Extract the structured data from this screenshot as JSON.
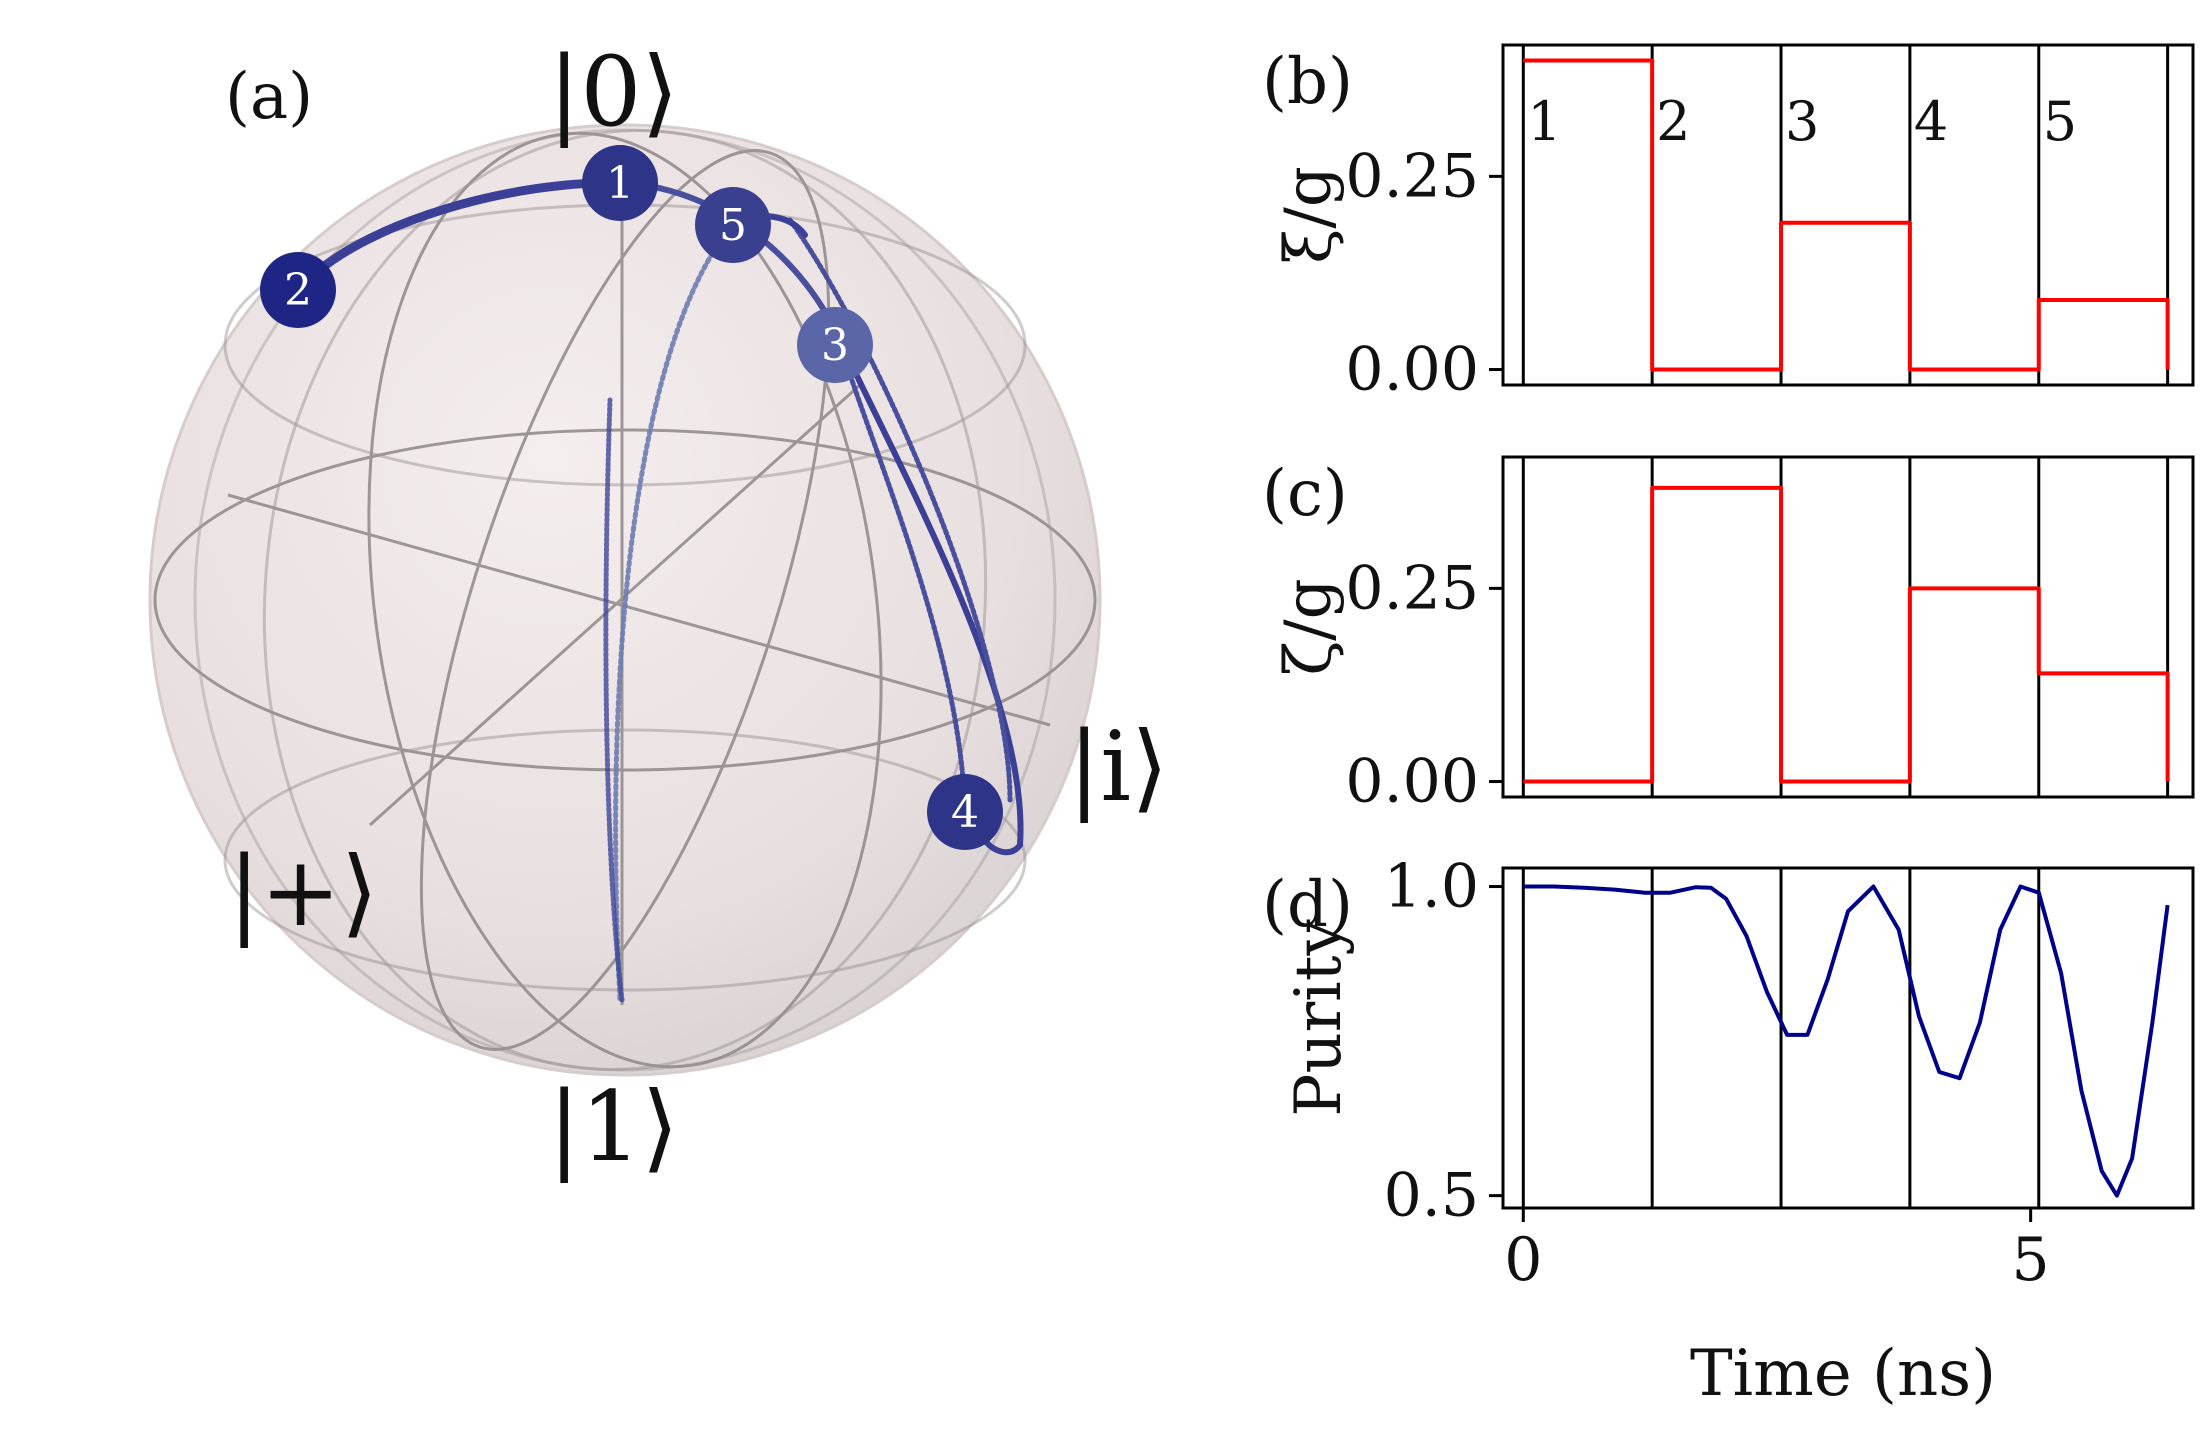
{
  "bloch": {
    "panel_label": "(a)",
    "kets": {
      "zero": "|0⟩",
      "one": "|1⟩",
      "plus": "|+⟩",
      "i": "|i⟩"
    },
    "points": [
      "1",
      "2",
      "3",
      "4",
      "5"
    ],
    "colors": {
      "trajectory": "#3b3f96",
      "marker_dark": "#2e3488",
      "marker_light": "#5b66a8",
      "sphere": "#ece4e4",
      "grid": "#8a8484"
    }
  },
  "chart_data": [
    {
      "type": "line",
      "panel_label": "(b)",
      "ylabel": "ξ/g",
      "xlim": [
        -0.2,
        6.6
      ],
      "ylim": [
        -0.02,
        0.42
      ],
      "yticks": [
        "0.00",
        "0.25"
      ],
      "ytick_values": [
        0.0,
        0.25
      ],
      "segment_labels": [
        "1",
        "2",
        "3",
        "4",
        "5"
      ],
      "boundaries": [
        0,
        1.27,
        2.54,
        3.81,
        5.08,
        6.35
      ],
      "series": [
        {
          "step_values": [
            0.4,
            0.0,
            0.19,
            0.0,
            0.09
          ],
          "color": "#ff0000"
        }
      ]
    },
    {
      "type": "line",
      "panel_label": "(c)",
      "ylabel": "ζ/g",
      "xlim": [
        -0.2,
        6.6
      ],
      "ylim": [
        -0.02,
        0.42
      ],
      "yticks": [
        "0.00",
        "0.25"
      ],
      "ytick_values": [
        0.0,
        0.25
      ],
      "boundaries": [
        0,
        1.27,
        2.54,
        3.81,
        5.08,
        6.35
      ],
      "series": [
        {
          "step_values": [
            0.0,
            0.38,
            0.0,
            0.25,
            0.14
          ],
          "color": "#ff0000"
        }
      ]
    },
    {
      "type": "line",
      "panel_label": "(d)",
      "ylabel": "Purity",
      "xlabel": "Time (ns)",
      "xlim": [
        -0.2,
        6.6
      ],
      "ylim": [
        0.48,
        1.03
      ],
      "yticks": [
        "0.5",
        "1.0"
      ],
      "ytick_values": [
        0.5,
        1.0
      ],
      "xticks": [
        "0",
        "5"
      ],
      "xtick_values": [
        0,
        5
      ],
      "boundaries": [
        0,
        1.27,
        2.54,
        3.81,
        5.08
      ],
      "series": [
        {
          "color": "#00008b",
          "x": [
            0,
            0.3,
            0.6,
            0.9,
            1.2,
            1.45,
            1.7,
            1.85,
            2.0,
            2.2,
            2.4,
            2.6,
            2.8,
            3.0,
            3.2,
            3.45,
            3.7,
            3.9,
            4.1,
            4.3,
            4.5,
            4.7,
            4.9,
            5.08,
            5.3,
            5.5,
            5.7,
            5.85,
            6.0,
            6.2,
            6.35
          ],
          "y": [
            1.0,
            1.0,
            0.998,
            0.995,
            0.99,
            0.99,
            0.999,
            0.998,
            0.98,
            0.92,
            0.83,
            0.76,
            0.76,
            0.85,
            0.96,
            1.0,
            0.93,
            0.79,
            0.7,
            0.69,
            0.78,
            0.93,
            1.0,
            0.99,
            0.86,
            0.67,
            0.54,
            0.5,
            0.56,
            0.78,
            0.97
          ]
        }
      ]
    }
  ],
  "shared": {
    "xlabel": "Time (ns)"
  }
}
